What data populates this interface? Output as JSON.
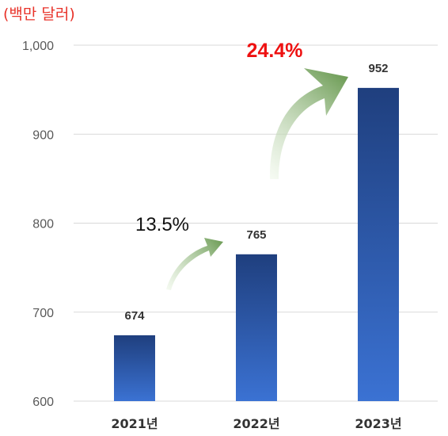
{
  "unit_label": "(백만 달러)",
  "colors": {
    "bar_top": "#1f3f7e",
    "bar_bottom": "#3b72d3",
    "grid": "#d9d9d9",
    "tick_text": "#595959",
    "growth_highlight": "#ee1111",
    "arrow_light": "#e3f2d8",
    "arrow_dark": "#6a9a52"
  },
  "chart_data": {
    "type": "bar",
    "categories": [
      "2021년",
      "2022년",
      "2023년"
    ],
    "values": [
      674,
      765,
      952
    ],
    "ylim": [
      600,
      1000
    ],
    "yticks": [
      "600",
      "700",
      "800",
      "900",
      "1,000"
    ],
    "grid": true,
    "annotations": [
      {
        "text": "13.5%",
        "between": [
          "2021년",
          "2022년"
        ],
        "style": "plain"
      },
      {
        "text": "24.4%",
        "between": [
          "2022년",
          "2023년"
        ],
        "style": "bold-red"
      }
    ]
  }
}
